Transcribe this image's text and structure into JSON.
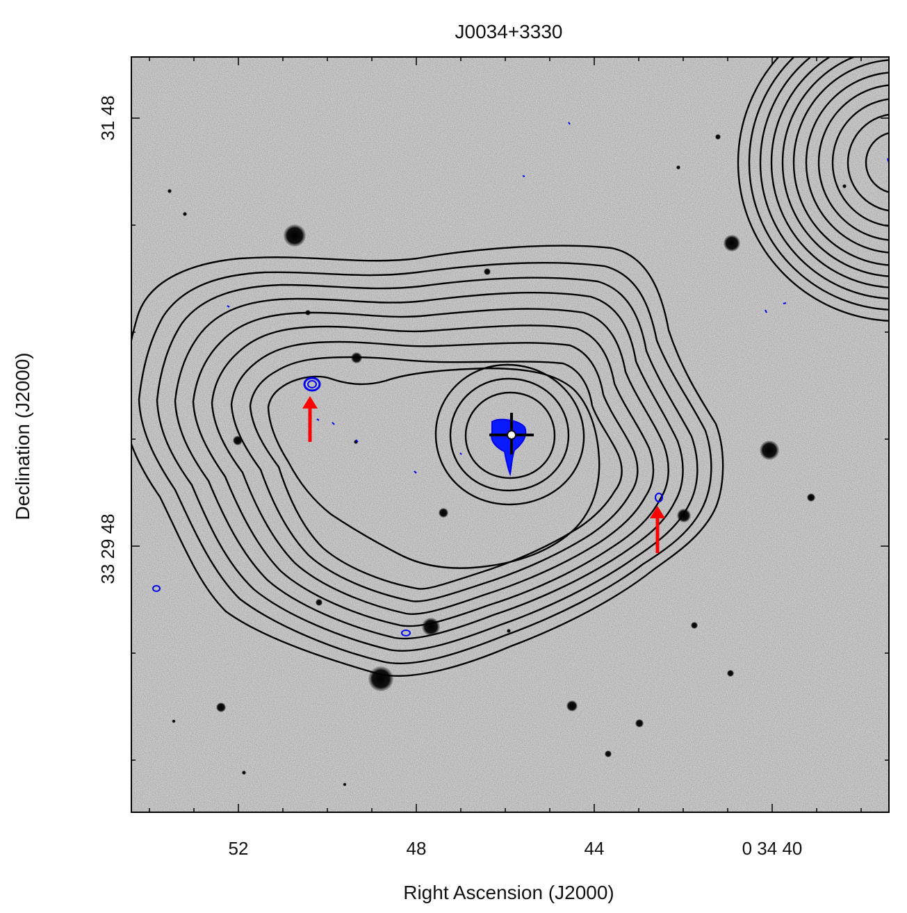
{
  "chart_data": {
    "type": "scatter",
    "title": "J0034+3330",
    "xlabel": "Right Ascension (J2000)",
    "ylabel": "Declination (J2000)",
    "x_ticks": [
      "52",
      "48",
      "44",
      "0 34 40"
    ],
    "y_ticks": [
      "31 48",
      "33 29 48"
    ],
    "image": "inverted greyscale optical sky field with black radio contours and blue radio contours",
    "annotations": [
      {
        "type": "cross",
        "color": "#000000",
        "label": "host galaxy marker at field centre"
      },
      {
        "type": "arrow",
        "color": "#ff0000",
        "label": "east hotspot"
      },
      {
        "type": "arrow",
        "color": "#ff0000",
        "label": "west hotspot"
      }
    ],
    "contours": [
      {
        "name": "black contours",
        "color": "#000000",
        "levels": 12
      },
      {
        "name": "blue contours",
        "color": "#0000ff"
      }
    ]
  },
  "colors": {
    "sky": "#e7e7e7",
    "contour_black": "#000000",
    "contour_blue": "#0000ee",
    "arrow": "#ff0000"
  }
}
